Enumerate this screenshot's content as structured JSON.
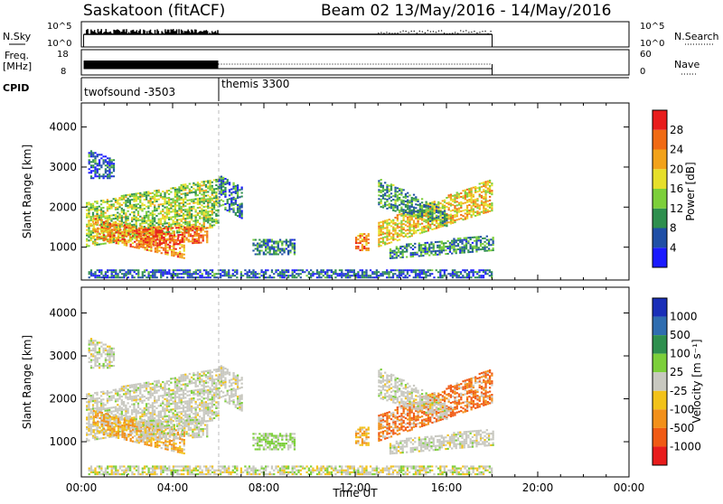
{
  "header": {
    "station": "Saskatoon (fitACF)",
    "beam_dates": "Beam 02  13/May/2016 - 14/May/2016"
  },
  "strip_labels": {
    "nsky": "N.Sky",
    "freq_line1": "Freq.",
    "freq_line2": "[MHz]",
    "cpid": "CPID",
    "nsearch": "N.Search",
    "nave": "Nave",
    "nsky_ticks": [
      "10^5",
      "10^0"
    ],
    "nsearch_ticks": [
      "10^5",
      "10^0"
    ],
    "freq_ticks": [
      "18",
      "8"
    ],
    "nave_ticks": [
      "60",
      "0"
    ]
  },
  "cpid_segments": [
    "twofsound -3503",
    "themis 3300"
  ],
  "colors": {
    "power_scale": [
      "#1a1aff",
      "#1f4fa6",
      "#2e8f4e",
      "#7ccf3a",
      "#e6df2a",
      "#f2a21a",
      "#f06a14",
      "#e81c1c"
    ],
    "velocity_scale": [
      "#1a2fb8",
      "#2f6db0",
      "#2e8f4e",
      "#7ccf3a",
      "#c8c8c0",
      "#f2c21a",
      "#f2901a",
      "#f05a14",
      "#e81c1c"
    ]
  },
  "chart_data": [
    {
      "type": "heatmap",
      "title": "Power",
      "xlabel": "",
      "ylabel": "Slant Range [km]",
      "xlim": [
        0,
        24
      ],
      "ylim": [
        180,
        4600
      ],
      "y_ticks": [
        "1000",
        "2000",
        "3000",
        "4000"
      ],
      "colorbar_label": "Power [dB]",
      "colorbar_ticks": [
        "4",
        "8",
        "12",
        "16",
        "20",
        "24",
        "28"
      ],
      "color_range": [
        0,
        30
      ],
      "scan_boundary_hours": 6.0
    },
    {
      "type": "heatmap",
      "title": "Velocity",
      "xlabel": "Time UT",
      "ylabel": "Slant Range [km]",
      "xlim": [
        0,
        24
      ],
      "ylim": [
        180,
        4600
      ],
      "x_ticks": [
        "00:00",
        "04:00",
        "08:00",
        "12:00",
        "16:00",
        "20:00",
        "00:00"
      ],
      "y_ticks": [
        "1000",
        "2000",
        "3000",
        "4000"
      ],
      "colorbar_label": "Velocity [m s⁻¹]",
      "colorbar_ticks": [
        "1000",
        "500",
        "100",
        "25",
        "-25",
        "-100",
        "-500",
        "-1000"
      ],
      "scan_boundary_hours": 6.0
    }
  ]
}
